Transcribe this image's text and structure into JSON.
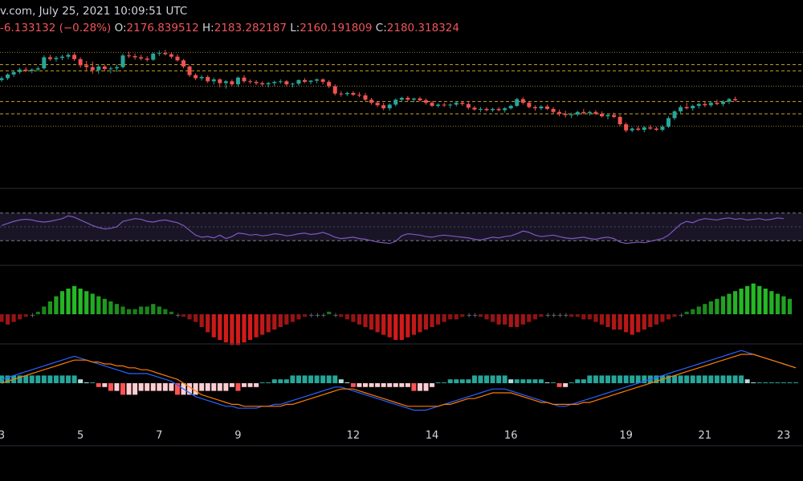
{
  "header": {
    "source_time": "v.com, July 25, 2021 10:09:51 UTC",
    "change": "-6.133132 (−0.28%)",
    "o_label": "O:",
    "o_value": "2176.839512",
    "h_label": "H:",
    "h_value": "2183.282187",
    "l_label": "L:",
    "l_value": "2160.191809",
    "c_label": "C:",
    "c_value": "2180.318324"
  },
  "colors": {
    "up": "#26a69a",
    "down": "#ef5350",
    "rsi": "#7e57c2",
    "rsi_band": "#1a1526",
    "mom_up": "#26b926",
    "mom_down": "#d11b1b",
    "macd_line": "#2962ff",
    "signal_line": "#ff7b00",
    "hist_up_strong": "#26a69a",
    "hist_up_weak": "#b2dfdb",
    "hist_down_strong": "#ff5252",
    "hist_down_weak": "#ffcdd2",
    "level_line": "#c9a227",
    "dotted_line": "#8c7a2a",
    "pane_border": "#2a2e39"
  },
  "chart_data": [
    {
      "type": "candlestick",
      "pane": "price",
      "x_tick_labels": [
        "3",
        "5",
        "7",
        "9",
        "12",
        "14",
        "16",
        "19",
        "21",
        "23"
      ],
      "x_tick_index": [
        0,
        13,
        26,
        39,
        58,
        71,
        84,
        103,
        116,
        129
      ],
      "ylim": [
        2000,
        2480
      ],
      "horizontal_levels_dashed": [
        2400,
        2380,
        2280,
        2240
      ],
      "horizontal_levels_dotted": [
        2440,
        2330,
        2200
      ],
      "candles_ohlc": [
        [
          2350,
          2362,
          2344,
          2356
        ],
        [
          2356,
          2372,
          2350,
          2368
        ],
        [
          2368,
          2382,
          2360,
          2376
        ],
        [
          2376,
          2390,
          2370,
          2384
        ],
        [
          2384,
          2392,
          2376,
          2380
        ],
        [
          2380,
          2388,
          2372,
          2384
        ],
        [
          2384,
          2394,
          2378,
          2388
        ],
        [
          2388,
          2430,
          2384,
          2424
        ],
        [
          2424,
          2432,
          2412,
          2418
        ],
        [
          2418,
          2428,
          2410,
          2422
        ],
        [
          2422,
          2432,
          2414,
          2426
        ],
        [
          2426,
          2438,
          2418,
          2432
        ],
        [
          2432,
          2440,
          2412,
          2418
        ],
        [
          2418,
          2424,
          2390,
          2398
        ],
        [
          2398,
          2412,
          2380,
          2392
        ],
        [
          2392,
          2410,
          2370,
          2382
        ],
        [
          2382,
          2400,
          2370,
          2394
        ],
        [
          2394,
          2400,
          2378,
          2386
        ],
        [
          2386,
          2394,
          2372,
          2388
        ],
        [
          2388,
          2400,
          2376,
          2392
        ],
        [
          2392,
          2436,
          2388,
          2430
        ],
        [
          2430,
          2442,
          2422,
          2428
        ],
        [
          2428,
          2436,
          2416,
          2424
        ],
        [
          2424,
          2432,
          2414,
          2420
        ],
        [
          2420,
          2428,
          2410,
          2416
        ],
        [
          2416,
          2440,
          2412,
          2436
        ],
        [
          2436,
          2446,
          2428,
          2438
        ],
        [
          2438,
          2448,
          2430,
          2434
        ],
        [
          2434,
          2440,
          2420,
          2426
        ],
        [
          2426,
          2434,
          2410,
          2414
        ],
        [
          2414,
          2418,
          2388,
          2394
        ],
        [
          2394,
          2398,
          2360,
          2366
        ],
        [
          2366,
          2372,
          2350,
          2356
        ],
        [
          2356,
          2366,
          2348,
          2360
        ],
        [
          2360,
          2366,
          2340,
          2346
        ],
        [
          2346,
          2358,
          2336,
          2352
        ],
        [
          2352,
          2356,
          2326,
          2340
        ],
        [
          2340,
          2350,
          2322,
          2346
        ],
        [
          2346,
          2352,
          2330,
          2336
        ],
        [
          2336,
          2362,
          2328,
          2358
        ],
        [
          2358,
          2366,
          2340,
          2346
        ],
        [
          2346,
          2352,
          2338,
          2344
        ],
        [
          2344,
          2350,
          2334,
          2340
        ],
        [
          2340,
          2346,
          2330,
          2336
        ],
        [
          2336,
          2344,
          2326,
          2340
        ],
        [
          2340,
          2348,
          2330,
          2344
        ],
        [
          2344,
          2352,
          2338,
          2346
        ],
        [
          2346,
          2350,
          2330,
          2336
        ],
        [
          2336,
          2342,
          2326,
          2338
        ],
        [
          2338,
          2352,
          2332,
          2350
        ],
        [
          2350,
          2356,
          2340,
          2344
        ],
        [
          2344,
          2350,
          2336,
          2348
        ],
        [
          2348,
          2356,
          2340,
          2352
        ],
        [
          2352,
          2356,
          2336,
          2344
        ],
        [
          2344,
          2350,
          2324,
          2330
        ],
        [
          2330,
          2336,
          2300,
          2306
        ],
        [
          2306,
          2314,
          2296,
          2304
        ],
        [
          2304,
          2312,
          2298,
          2308
        ],
        [
          2308,
          2314,
          2298,
          2302
        ],
        [
          2302,
          2310,
          2294,
          2300
        ],
        [
          2300,
          2308,
          2280,
          2286
        ],
        [
          2286,
          2292,
          2270,
          2276
        ],
        [
          2276,
          2282,
          2262,
          2268
        ],
        [
          2268,
          2276,
          2252,
          2258
        ],
        [
          2258,
          2274,
          2250,
          2270
        ],
        [
          2270,
          2290,
          2264,
          2286
        ],
        [
          2286,
          2296,
          2280,
          2292
        ],
        [
          2292,
          2298,
          2282,
          2286
        ],
        [
          2286,
          2292,
          2278,
          2290
        ],
        [
          2290,
          2296,
          2280,
          2284
        ],
        [
          2284,
          2290,
          2270,
          2276
        ],
        [
          2276,
          2282,
          2262,
          2266
        ],
        [
          2266,
          2274,
          2260,
          2270
        ],
        [
          2270,
          2276,
          2262,
          2268
        ],
        [
          2268,
          2274,
          2258,
          2270
        ],
        [
          2270,
          2280,
          2264,
          2276
        ],
        [
          2276,
          2282,
          2266,
          2272
        ],
        [
          2272,
          2278,
          2254,
          2260
        ],
        [
          2260,
          2266,
          2250,
          2254
        ],
        [
          2254,
          2262,
          2246,
          2256
        ],
        [
          2256,
          2262,
          2248,
          2252
        ],
        [
          2252,
          2260,
          2246,
          2256
        ],
        [
          2256,
          2262,
          2248,
          2252
        ],
        [
          2252,
          2262,
          2244,
          2258
        ],
        [
          2258,
          2270,
          2254,
          2266
        ],
        [
          2266,
          2292,
          2262,
          2288
        ],
        [
          2288,
          2294,
          2270,
          2276
        ],
        [
          2276,
          2282,
          2258,
          2262
        ],
        [
          2262,
          2268,
          2250,
          2258
        ],
        [
          2258,
          2268,
          2252,
          2264
        ],
        [
          2264,
          2270,
          2252,
          2256
        ],
        [
          2256,
          2262,
          2240,
          2246
        ],
        [
          2246,
          2254,
          2232,
          2240
        ],
        [
          2240,
          2250,
          2228,
          2236
        ],
        [
          2236,
          2244,
          2226,
          2238
        ],
        [
          2238,
          2250,
          2232,
          2246
        ],
        [
          2246,
          2256,
          2238,
          2242
        ],
        [
          2242,
          2250,
          2234,
          2246
        ],
        [
          2246,
          2252,
          2236,
          2240
        ],
        [
          2240,
          2248,
          2228,
          2232
        ],
        [
          2232,
          2240,
          2222,
          2236
        ],
        [
          2236,
          2244,
          2226,
          2230
        ],
        [
          2230,
          2236,
          2200,
          2206
        ],
        [
          2206,
          2212,
          2180,
          2186
        ],
        [
          2186,
          2196,
          2180,
          2192
        ],
        [
          2192,
          2200,
          2184,
          2188
        ],
        [
          2188,
          2200,
          2180,
          2196
        ],
        [
          2196,
          2204,
          2188,
          2192
        ],
        [
          2192,
          2198,
          2184,
          2188
        ],
        [
          2188,
          2204,
          2182,
          2198
        ],
        [
          2198,
          2232,
          2194,
          2226
        ],
        [
          2226,
          2252,
          2220,
          2248
        ],
        [
          2248,
          2268,
          2240,
          2262
        ],
        [
          2262,
          2276,
          2254,
          2258
        ],
        [
          2258,
          2270,
          2250,
          2266
        ],
        [
          2266,
          2276,
          2258,
          2272
        ],
        [
          2272,
          2280,
          2262,
          2268
        ],
        [
          2268,
          2280,
          2262,
          2276
        ],
        [
          2276,
          2286,
          2268,
          2272
        ],
        [
          2272,
          2284,
          2264,
          2280
        ],
        [
          2280,
          2292,
          2272,
          2288
        ],
        [
          2288,
          2296,
          2280,
          2284
        ]
      ]
    },
    {
      "type": "line",
      "pane": "rsi",
      "ylim": [
        0,
        100
      ],
      "band": [
        30,
        70
      ],
      "midline": 50,
      "values": [
        52,
        55,
        58,
        60,
        61,
        60,
        58,
        57,
        58,
        60,
        62,
        66,
        64,
        60,
        56,
        52,
        49,
        47,
        48,
        50,
        58,
        60,
        62,
        61,
        58,
        57,
        59,
        60,
        58,
        56,
        52,
        45,
        38,
        35,
        36,
        34,
        38,
        33,
        36,
        41,
        40,
        38,
        39,
        37,
        38,
        40,
        39,
        37,
        38,
        40,
        41,
        39,
        40,
        42,
        39,
        35,
        33,
        34,
        35,
        33,
        32,
        30,
        28,
        27,
        26,
        29,
        37,
        40,
        39,
        38,
        36,
        35,
        37,
        38,
        37,
        36,
        35,
        34,
        32,
        31,
        33,
        35,
        34,
        36,
        37,
        40,
        44,
        42,
        38,
        36,
        37,
        38,
        36,
        34,
        33,
        34,
        35,
        33,
        32,
        34,
        35,
        33,
        28,
        26,
        27,
        28,
        27,
        29,
        31,
        33,
        38,
        46,
        54,
        58,
        56,
        60,
        62,
        61,
        60,
        62,
        63,
        61,
        62,
        60,
        61,
        62,
        60,
        61,
        63,
        62
      ]
    },
    {
      "type": "bar",
      "pane": "momentum",
      "values": [
        -3,
        -4,
        -3,
        -2,
        -1,
        0,
        1,
        3,
        5,
        7,
        9,
        10,
        11,
        10,
        9,
        8,
        7,
        6,
        5,
        4,
        3,
        2,
        2,
        3,
        3,
        4,
        3,
        2,
        1,
        0,
        -1,
        -2,
        -3,
        -5,
        -7,
        -9,
        -10,
        -11,
        -12,
        -12,
        -11,
        -10,
        -9,
        -8,
        -7,
        -6,
        -5,
        -4,
        -3,
        -2,
        -1,
        0,
        0,
        0,
        1,
        0,
        -1,
        -2,
        -3,
        -4,
        -5,
        -6,
        -7,
        -8,
        -9,
        -10,
        -10,
        -9,
        -8,
        -7,
        -6,
        -5,
        -4,
        -3,
        -2,
        -2,
        -1,
        0,
        0,
        -1,
        -2,
        -3,
        -4,
        -4,
        -5,
        -5,
        -4,
        -3,
        -2,
        -1,
        0,
        0,
        0,
        0,
        -1,
        -1,
        -2,
        -2,
        -3,
        -4,
        -5,
        -6,
        -6,
        -7,
        -8,
        -7,
        -6,
        -5,
        -4,
        -3,
        -2,
        -1,
        0,
        1,
        2,
        3,
        4,
        5,
        6,
        7,
        8,
        9,
        10,
        11,
        12,
        11,
        10,
        9,
        8,
        7,
        6
      ]
    },
    {
      "type": "line+bar",
      "pane": "macd",
      "macd": [
        2,
        3,
        4,
        5,
        6,
        7,
        8,
        9,
        10,
        11,
        12,
        13,
        14,
        13,
        12,
        11,
        10,
        9,
        8,
        7,
        6,
        5,
        5,
        5,
        5,
        4,
        3,
        2,
        1,
        -1,
        -3,
        -5,
        -7,
        -8,
        -9,
        -10,
        -11,
        -12,
        -12,
        -13,
        -13,
        -13,
        -13,
        -12,
        -12,
        -11,
        -11,
        -10,
        -9,
        -8,
        -7,
        -6,
        -5,
        -4,
        -3,
        -2,
        -2,
        -3,
        -4,
        -5,
        -6,
        -7,
        -8,
        -9,
        -10,
        -11,
        -12,
        -13,
        -14,
        -14,
        -14,
        -13,
        -12,
        -11,
        -10,
        -9,
        -8,
        -7,
        -6,
        -5,
        -4,
        -3,
        -3,
        -3,
        -4,
        -5,
        -6,
        -7,
        -8,
        -9,
        -10,
        -11,
        -12,
        -12,
        -11,
        -10,
        -9,
        -8,
        -7,
        -6,
        -5,
        -4,
        -3,
        -2,
        -1,
        0,
        1,
        2,
        3,
        4,
        5,
        6,
        7,
        8,
        9,
        10,
        11,
        12,
        13,
        14,
        15,
        16,
        17,
        16,
        15,
        14,
        13,
        12,
        11,
        10,
        9,
        8
      ],
      "signal": [
        0,
        1,
        2,
        3,
        4,
        5,
        6,
        7,
        8,
        9,
        10,
        11,
        12,
        12,
        12,
        11,
        11,
        10,
        10,
        9,
        9,
        8,
        8,
        7,
        7,
        6,
        5,
        4,
        3,
        2,
        0,
        -2,
        -4,
        -6,
        -7,
        -8,
        -9,
        -10,
        -11,
        -11,
        -12,
        -12,
        -12,
        -12,
        -12,
        -12,
        -12,
        -11,
        -11,
        -10,
        -9,
        -8,
        -7,
        -6,
        -5,
        -4,
        -3,
        -3,
        -3,
        -4,
        -5,
        -6,
        -7,
        -8,
        -9,
        -10,
        -11,
        -12,
        -12,
        -12,
        -12,
        -12,
        -12,
        -11,
        -11,
        -10,
        -9,
        -8,
        -8,
        -7,
        -6,
        -5,
        -5,
        -5,
        -5,
        -6,
        -7,
        -8,
        -9,
        -10,
        -10,
        -11,
        -11,
        -11,
        -11,
        -11,
        -10,
        -10,
        -9,
        -8,
        -7,
        -6,
        -5,
        -4,
        -3,
        -2,
        -1,
        0,
        1,
        2,
        3,
        4,
        5,
        6,
        7,
        8,
        9,
        10,
        11,
        12,
        13,
        14,
        15,
        15,
        15,
        14,
        13,
        12,
        11,
        10,
        9,
        8
      ]
    }
  ]
}
